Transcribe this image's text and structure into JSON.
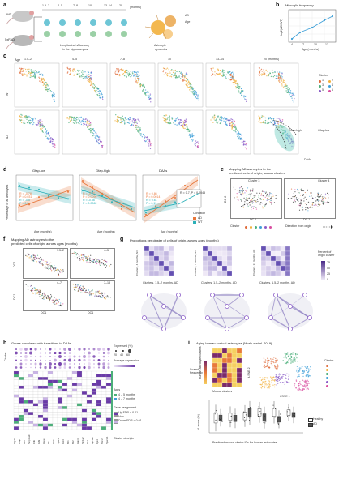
{
  "panels": [
    "a",
    "b",
    "c",
    "d",
    "e",
    "f",
    "g",
    "h",
    "i"
  ],
  "a": {
    "wt_label": "WT",
    "ad_label": "5xFAD",
    "timepoints": [
      "1.5–2",
      "4–5",
      "7–8",
      "10",
      "13–14",
      "20"
    ],
    "unit": "(months)",
    "caption_line1": "Longitudinal sNuc-seq",
    "caption_line2": "in the hippocampus",
    "dynamics_label": "Astrocyte",
    "dynamics_label2": "dynamics",
    "legend_ad": "AD",
    "legend_age": "Age"
  },
  "b": {
    "title": "Microglia frequency",
    "ylabel": "log2(AD/WT)",
    "xlabel": "Age (months)",
    "xticks": [
      "4",
      "7",
      "10",
      "13"
    ]
  },
  "c": {
    "age_label": "Age",
    "ages": [
      "1.5–2",
      "4–5",
      "7–8",
      "10",
      "13–14",
      "20 (months)"
    ],
    "row_wt": "WT",
    "row_ad": "AD",
    "cluster_title": "Cluster",
    "clusters": [
      "1",
      "2",
      "3",
      "4",
      "5",
      "6"
    ],
    "colors": [
      "#e06c3c",
      "#f2b03c",
      "#4caf7a",
      "#3fa0d8",
      "#8a5cc8",
      "#d94da0"
    ],
    "annot_gfap": "Gfap-high",
    "annot_gfap_low": "Gfap-low",
    "annot_daas": "DAAs"
  },
  "d": {
    "titles": [
      "Gfap-low",
      "Gfap-high",
      "DAAs"
    ],
    "ylabel": "Percentage of all astrocytes",
    "xlabel": "Age (months)",
    "condition_title": "Condition",
    "condition_ad": "AD",
    "condition_wt": "WT",
    "stats1": [
      "R = -0.78",
      "P = 0.031",
      "R = -0.5",
      "P = 0.2"
    ],
    "stats2": [
      "R = -0.77",
      "P = 0.0096",
      "R = -0.86",
      "P = 0.0062"
    ],
    "stats3": [
      "R = 0.86",
      "P = 0.0014",
      "R = 0.61",
      "P = 0.11"
    ],
    "inset": "R = 0.7, P = 0.0045",
    "color_ad": "#e8773a",
    "color_wt": "#2bb0b8"
  },
  "e": {
    "title_line1": "Mapping AD astrocytes to the",
    "title_line2": "predicted cells of origin, across clusters",
    "sub1": "Cluster 3",
    "sub2": "Cluster 4",
    "xlabel": "DC 1",
    "ylabel": "DC 2",
    "legend_cluster": "Cluster",
    "legend_direction": "Direction from origin"
  },
  "f": {
    "title_line1": "Mapping AD astrocytes to the",
    "title_line2": "predicted cells of origin, across ages (months)",
    "subs": [
      "1.5–2",
      "4–5",
      "4–7",
      "7–13"
    ],
    "xlabel": "DC1",
    "ylabel": "DC2"
  },
  "g": {
    "title": "Proportions per cluster of cells of origin, across ages (months)",
    "heatmap_ylabels": [
      "Clusters, 4 months, AD",
      "Clusters, 7 months, AD",
      "Clusters, 13 months, AD"
    ],
    "heatmap_xlabel": "Clusters, 1.5–2 months, AD",
    "legend_title": "Percent of origin cluster",
    "legend_ticks": [
      "0",
      "25",
      "50",
      "75"
    ]
  },
  "h": {
    "title": "Genes correlated with transitions to DAAs",
    "ylabel": "Cluster",
    "expressed_title": "Expressed (%)",
    "expressed_ticks": [
      "20",
      "40",
      "60"
    ],
    "avg_title": "Average expression",
    "ages_title": "Ages",
    "age_items": [
      "4 – 5 months",
      "4 – 7 months"
    ],
    "gene_title": "Gene assignment",
    "gene_items": [
      "Up FDR < 0.01",
      "Non",
      "Down FDR < 0.01"
    ],
    "origin_label": "Cluster of origin",
    "genes": [
      "Ptgds",
      "Gfap",
      "Vim",
      "Serpina3n",
      "C4b",
      "Cd9",
      "Apoe",
      "Clu",
      "Ctsb",
      "Sparc",
      "Cst3",
      "Mt1",
      "Mt2",
      "Aqp4",
      "Slc1a2",
      "Glul",
      "Atp1a2",
      "Gja1",
      "Ntsr2",
      "Sparcl1"
    ]
  },
  "i": {
    "title": "Aging human cortical astrocytes (Morly-x et al. 2019)",
    "heat_ylabel": "Human astrocyte clusters",
    "heat_xlabel": "Mouse clusters",
    "scale_label": "Scaled frequency",
    "tsne_x": "t-SNE 1",
    "tsne_y": "t-SNE 2",
    "cluster_title": "Cluster",
    "box_ylabel": "A-score (%)",
    "box_xlabel": "Predicted mouse cluster IDs for human astrocytes",
    "legend_healthy": "Healthy",
    "legend_ad": "AD"
  }
}
